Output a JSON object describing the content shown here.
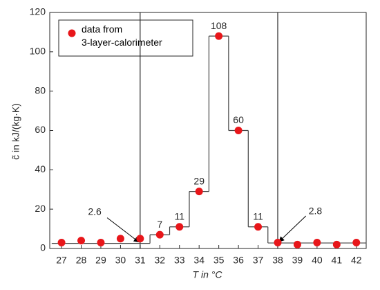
{
  "chart_data": {
    "type": "scatter",
    "x_label": "T  in  °C",
    "y_label": "c̃  in  kJ/(kg·K)",
    "xlim": [
      26.4,
      42.5
    ],
    "ylim": [
      0,
      120
    ],
    "xticks": [
      27,
      28,
      29,
      30,
      31,
      32,
      33,
      34,
      35,
      36,
      37,
      38,
      39,
      40,
      41,
      42
    ],
    "yticks": [
      0,
      20,
      40,
      60,
      80,
      100,
      120
    ],
    "series": [
      {
        "name": "data from\n3-layer-calorimeter",
        "color": "#e8161a",
        "x": [
          27,
          28,
          29,
          30,
          31,
          32,
          33,
          34,
          35,
          36,
          37,
          38,
          39,
          40,
          41,
          42
        ],
        "values": [
          3,
          4,
          3,
          5,
          5,
          7,
          11,
          29,
          108,
          60,
          11,
          3,
          2,
          3,
          2,
          3
        ]
      }
    ],
    "steps": {
      "color": "#404040",
      "edges": [
        26.5,
        31.5,
        32.5,
        33.5,
        34.5,
        35.5,
        36.5,
        37.5,
        42.5
      ],
      "values": [
        2.6,
        7,
        11,
        29,
        108,
        60,
        11,
        2.8
      ]
    },
    "vlines": [
      31,
      38
    ]
  }
}
